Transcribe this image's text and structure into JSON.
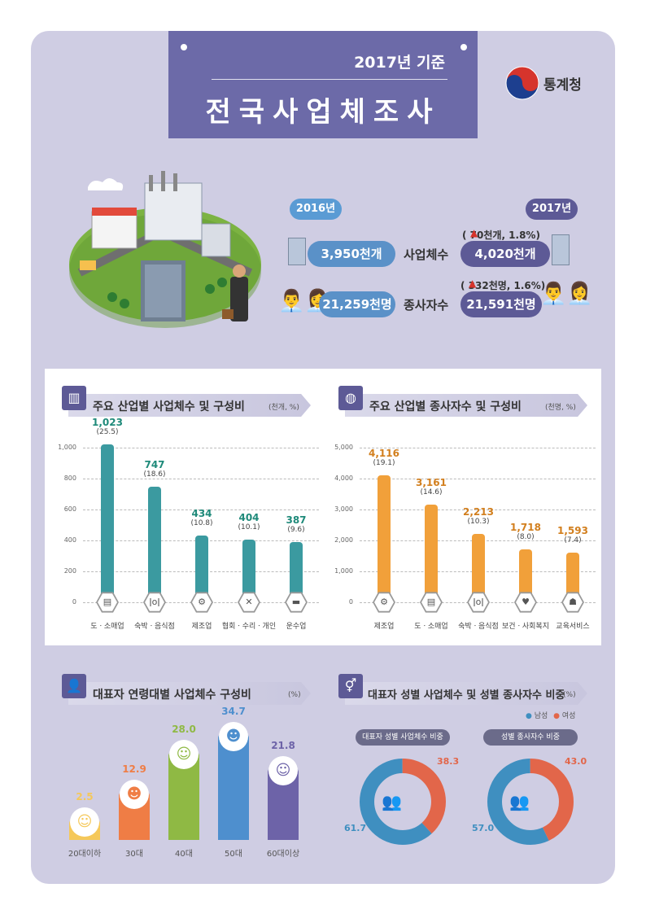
{
  "header": {
    "year_title": "2017년 기준",
    "main_title": "전국사업체조사",
    "agency": "통계청"
  },
  "summary": {
    "year_2016": "2016년",
    "year_2017": "2017년",
    "establishments": {
      "label": "사업체수",
      "v2016": "3,950천개",
      "v2017": "4,020천개",
      "change": "( 70천개, 1.8%)"
    },
    "workers": {
      "label": "종사자수",
      "v2016": "21,259천명",
      "v2017": "21,591천명",
      "change": "( 332천명, 1.6%)"
    }
  },
  "sections": {
    "industry_est_title": "주요 산업별 사업체수 및 구성비",
    "industry_est_unit": "(천개, %)",
    "industry_wrk_title": "주요 산업별 종사자수 및 구성비",
    "industry_wrk_unit": "(천명, %)",
    "age_title": "대표자 연령대별 사업체수 구성비",
    "age_unit": "(%)",
    "gender_title": "대표자 성별 사업체수 및 성별 종사자수 비중",
    "gender_unit": "(%)",
    "legend_male": "남성",
    "legend_female": "여성"
  },
  "chart_data": [
    {
      "type": "bar",
      "categories": [
        "도ㆍ소매업",
        "숙박ㆍ음식점",
        "제조업",
        "협회ㆍ수리ㆍ개인",
        "운수업"
      ],
      "values": [
        1023,
        747,
        434,
        404,
        387
      ],
      "value_labels": [
        "1,023",
        "747",
        "434",
        "404",
        "387"
      ],
      "shares": [
        "(25.5)",
        "(18.6)",
        "(10.8)",
        "(10.1)",
        "(9.6)"
      ],
      "yticks": [
        "0",
        "200",
        "400",
        "600",
        "800",
        "1,000"
      ],
      "ylim": [
        0,
        1000
      ],
      "color": "#3b9aa0",
      "icons": [
        "store-icon",
        "utensils-icon",
        "gear-icon",
        "tools-icon",
        "truck-icon"
      ]
    },
    {
      "type": "bar",
      "categories": [
        "제조업",
        "도ㆍ소매업",
        "숙박ㆍ음식점",
        "보건ㆍ사회복지",
        "교육서비스"
      ],
      "values": [
        4116,
        3161,
        2213,
        1718,
        1593
      ],
      "value_labels": [
        "4,116",
        "3,161",
        "2,213",
        "1,718",
        "1,593"
      ],
      "shares": [
        "(19.1)",
        "(14.6)",
        "(10.3)",
        "(8.0)",
        "(7.4)"
      ],
      "yticks": [
        "0",
        "1,000",
        "2,000",
        "3,000",
        "4,000",
        "5,000"
      ],
      "ylim": [
        0,
        5000
      ],
      "color": "#f1a03a",
      "icons": [
        "gear-icon",
        "store-icon",
        "utensils-icon",
        "heart-hands-icon",
        "teacher-icon"
      ]
    },
    {
      "type": "bar",
      "categories": [
        "20대이하",
        "30대",
        "40대",
        "50대",
        "60대이상"
      ],
      "values": [
        2.5,
        12.9,
        28.0,
        34.7,
        21.8
      ],
      "value_labels": [
        "2.5",
        "12.9",
        "28.0",
        "34.7",
        "21.8"
      ],
      "colors": [
        "#f5c85a",
        "#ef7d45",
        "#8fb944",
        "#4e8fce",
        "#6d63a8"
      ],
      "ylim": [
        0,
        40
      ]
    },
    {
      "type": "pie",
      "title": "대표자 성별 사업체수 비중",
      "series": [
        {
          "name": "남성",
          "value": 61.7
        },
        {
          "name": "여성",
          "value": 38.3
        }
      ],
      "labels": [
        "61.7",
        "38.3"
      ]
    },
    {
      "type": "pie",
      "title": "성별 종사자수 비중",
      "series": [
        {
          "name": "남성",
          "value": 57.0
        },
        {
          "name": "여성",
          "value": 43.0
        }
      ],
      "labels": [
        "57.0",
        "43.0"
      ]
    }
  ]
}
